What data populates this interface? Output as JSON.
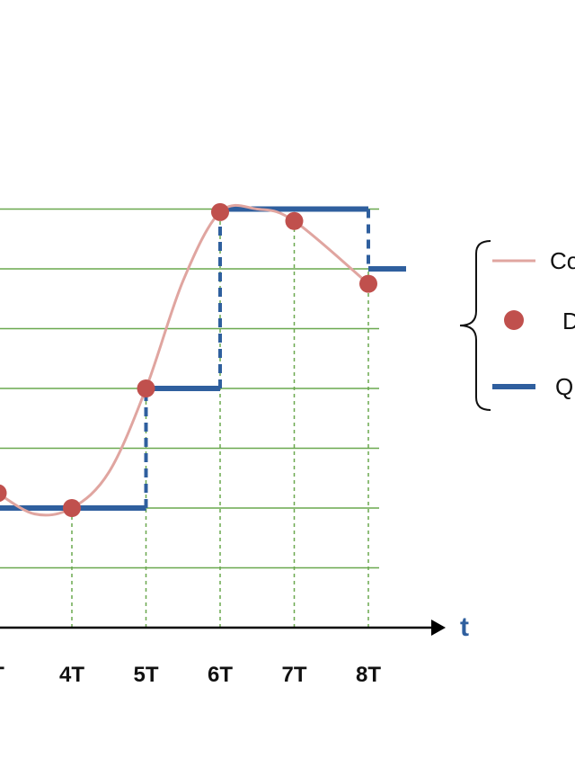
{
  "chart_data": {
    "type": "line",
    "x_axis_label": "t",
    "x_ticks": [
      "T",
      "4T",
      "5T",
      "6T",
      "7T",
      "8T"
    ],
    "y_levels": 7,
    "grid": "horizontal level lines, dashed verticals at samples",
    "series": [
      {
        "name": "Co",
        "kind": "continuous",
        "x": [
          3.0,
          3.5,
          4.0,
          4.5,
          5.0,
          5.5,
          6.0,
          6.5,
          7.0,
          8.0
        ],
        "y": [
          2.25,
          1.9,
          2.0,
          2.6,
          4.0,
          5.8,
          6.95,
          7.0,
          6.8,
          5.75
        ]
      },
      {
        "name": "D",
        "kind": "samples",
        "x": [
          3.0,
          4.0,
          5.0,
          6.0,
          7.0,
          8.0
        ],
        "y": [
          2.25,
          2.0,
          4.0,
          6.95,
          6.8,
          5.75
        ]
      },
      {
        "name": "Q",
        "kind": "quantized",
        "x": [
          3.0,
          4.0,
          5.0,
          6.0,
          7.0,
          8.0
        ],
        "y": [
          2,
          2,
          4,
          7,
          7,
          6
        ]
      }
    ],
    "colors": {
      "continuous": "#e0a5a0",
      "samples": "#c0504d",
      "quantized": "#2f5f9e",
      "grid": "#6aa84f",
      "axis": "#000000",
      "axis_label": "#2f5f9e"
    },
    "legend": {
      "placement": "right",
      "entries": [
        {
          "label": "Co",
          "symbol": "line"
        },
        {
          "label": "D",
          "symbol": "dot"
        },
        {
          "label": "Q",
          "symbol": "thick-line"
        }
      ]
    }
  }
}
